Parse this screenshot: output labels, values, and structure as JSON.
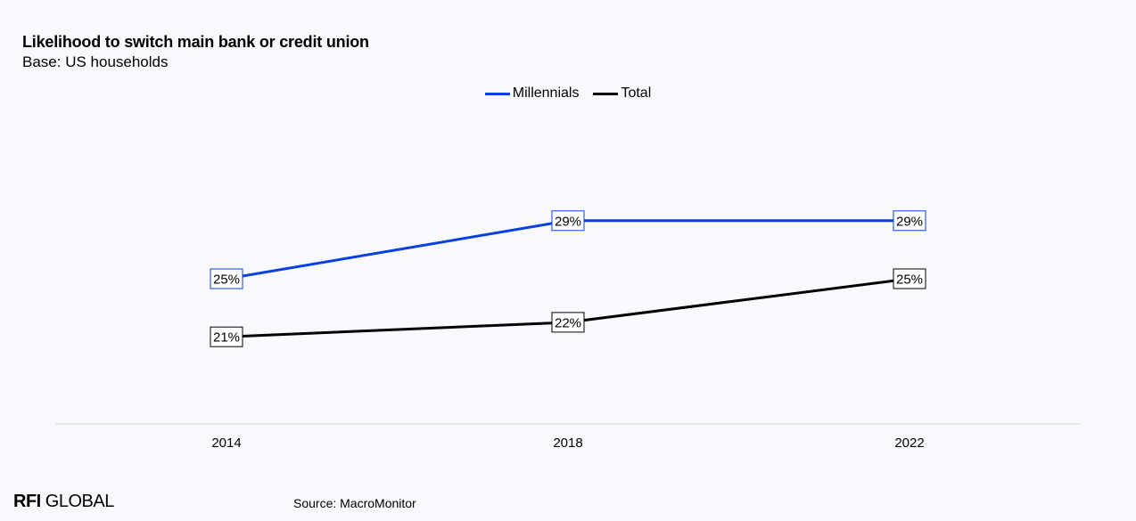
{
  "header": {
    "title": "Likelihood to switch main bank or credit union",
    "subtitle": "Base: US households"
  },
  "footer": {
    "logo_bold": "RFI",
    "logo_rest": " GLOBAL",
    "source": "Source: MacroMonitor"
  },
  "colors": {
    "millennials": "#0a3fe0",
    "total": "#000000",
    "axis": "#cfd6e4",
    "background": "#f7f9fd"
  },
  "chart_data": {
    "type": "line",
    "title": "Likelihood to switch main bank or credit union",
    "subtitle": "Base: US households",
    "x": [
      "2014",
      "2018",
      "2022"
    ],
    "series": [
      {
        "name": "Millennials",
        "values": [
          25,
          29,
          29
        ],
        "labels": [
          "25%",
          "29%",
          "29%"
        ],
        "color": "#0a3fe0"
      },
      {
        "name": "Total",
        "values": [
          21,
          22,
          25
        ],
        "labels": [
          "21%",
          "22%",
          "25%"
        ],
        "color": "#000000"
      }
    ],
    "legend_position": "top-center",
    "grid": false,
    "ylim": [
      15,
      35
    ]
  }
}
